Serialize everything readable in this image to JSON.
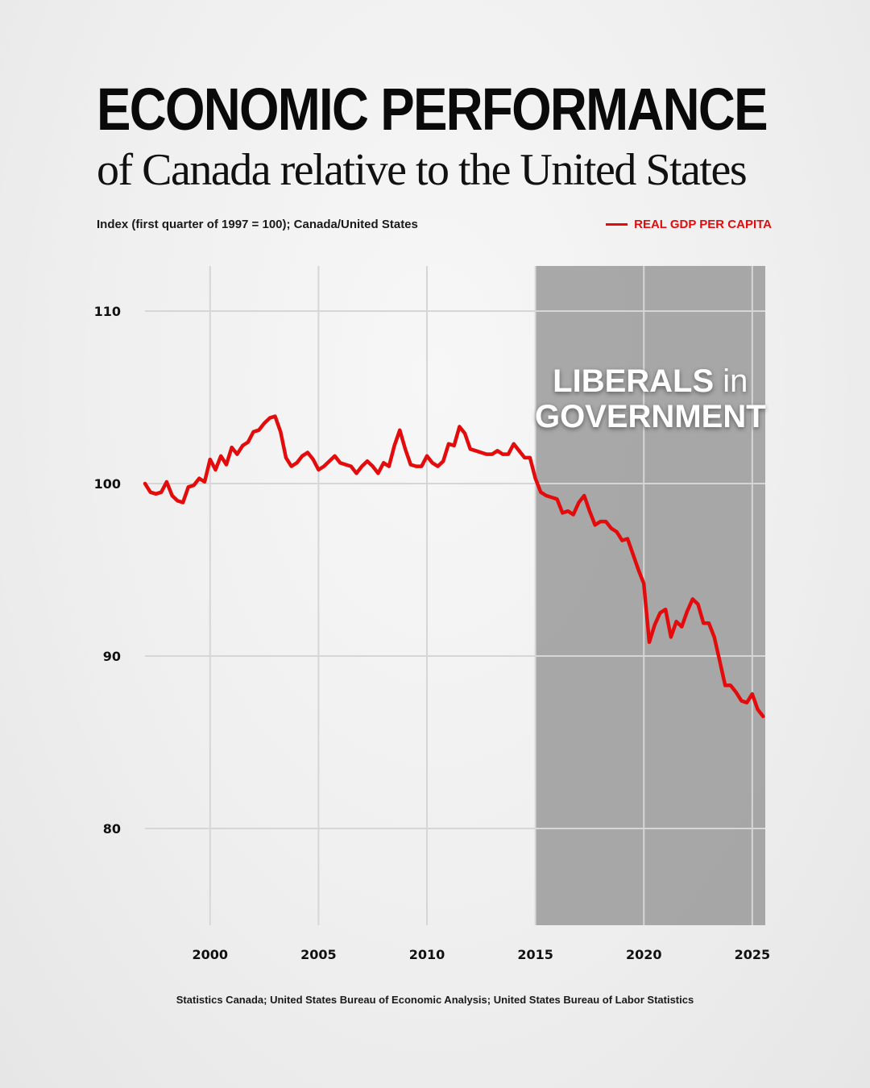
{
  "header": {
    "title": "ECONOMIC PERFORMANCE",
    "subtitle": "of Canada relative to the United States",
    "index_label": "Index (first quarter of 1997 = 100); Canada/United States",
    "legend_label": "REAL GDP PER CAPITA"
  },
  "footer": {
    "source": "Statistics Canada; United States Bureau of Economic Analysis; United States Bureau of Labor Statistics"
  },
  "colors": {
    "line": "#e30b0b",
    "shade": "#9a9a9a",
    "grid": "#d6d6d6",
    "text": "#111111"
  },
  "chart_data": {
    "type": "line",
    "title": "ECONOMIC PERFORMANCE",
    "subtitle": "of Canada relative to the United States",
    "xlim": [
      1997,
      2025.6
    ],
    "ylim": [
      75,
      113
    ],
    "x_ticks": [
      2000,
      2005,
      2010,
      2015,
      2020,
      2025
    ],
    "y_ticks": [
      80,
      90,
      100,
      110
    ],
    "grid": true,
    "legend_placement": "top-right",
    "annotation": {
      "line1_bold": "LIBERALS",
      "line1_rest": "in",
      "line2": "GOVERNMENT",
      "x_range": [
        2015,
        2025.6
      ]
    },
    "series": [
      {
        "name": "REAL GDP PER CAPITA",
        "points": [
          [
            1997.0,
            100.0
          ],
          [
            1997.25,
            99.5
          ],
          [
            1997.5,
            99.4
          ],
          [
            1997.75,
            99.5
          ],
          [
            1998.0,
            100.1
          ],
          [
            1998.25,
            99.3
          ],
          [
            1998.5,
            99.0
          ],
          [
            1998.75,
            98.9
          ],
          [
            1999.0,
            99.8
          ],
          [
            1999.25,
            99.9
          ],
          [
            1999.5,
            100.3
          ],
          [
            1999.75,
            100.1
          ],
          [
            2000.0,
            101.4
          ],
          [
            2000.25,
            100.8
          ],
          [
            2000.5,
            101.6
          ],
          [
            2000.75,
            101.1
          ],
          [
            2001.0,
            102.1
          ],
          [
            2001.25,
            101.7
          ],
          [
            2001.5,
            102.2
          ],
          [
            2001.75,
            102.4
          ],
          [
            2002.0,
            103.0
          ],
          [
            2002.25,
            103.1
          ],
          [
            2002.5,
            103.5
          ],
          [
            2002.75,
            103.8
          ],
          [
            2003.0,
            103.9
          ],
          [
            2003.25,
            103.0
          ],
          [
            2003.5,
            101.5
          ],
          [
            2003.75,
            101.0
          ],
          [
            2004.0,
            101.2
          ],
          [
            2004.25,
            101.6
          ],
          [
            2004.5,
            101.8
          ],
          [
            2004.75,
            101.4
          ],
          [
            2005.0,
            100.8
          ],
          [
            2005.25,
            101.0
          ],
          [
            2005.5,
            101.3
          ],
          [
            2005.75,
            101.6
          ],
          [
            2006.0,
            101.2
          ],
          [
            2006.25,
            101.1
          ],
          [
            2006.5,
            101.0
          ],
          [
            2006.75,
            100.6
          ],
          [
            2007.0,
            101.0
          ],
          [
            2007.25,
            101.3
          ],
          [
            2007.5,
            101.0
          ],
          [
            2007.75,
            100.6
          ],
          [
            2008.0,
            101.2
          ],
          [
            2008.25,
            101.0
          ],
          [
            2008.5,
            102.2
          ],
          [
            2008.75,
            103.1
          ],
          [
            2009.0,
            102.0
          ],
          [
            2009.25,
            101.1
          ],
          [
            2009.5,
            101.0
          ],
          [
            2009.75,
            101.0
          ],
          [
            2010.0,
            101.6
          ],
          [
            2010.25,
            101.2
          ],
          [
            2010.5,
            101.0
          ],
          [
            2010.75,
            101.3
          ],
          [
            2011.0,
            102.3
          ],
          [
            2011.25,
            102.2
          ],
          [
            2011.5,
            103.3
          ],
          [
            2011.75,
            102.9
          ],
          [
            2012.0,
            102.0
          ],
          [
            2012.25,
            101.9
          ],
          [
            2012.5,
            101.8
          ],
          [
            2012.75,
            101.7
          ],
          [
            2013.0,
            101.7
          ],
          [
            2013.25,
            101.9
          ],
          [
            2013.5,
            101.7
          ],
          [
            2013.75,
            101.7
          ],
          [
            2014.0,
            102.3
          ],
          [
            2014.25,
            101.9
          ],
          [
            2014.5,
            101.5
          ],
          [
            2014.75,
            101.5
          ],
          [
            2015.0,
            100.3
          ],
          [
            2015.25,
            99.5
          ],
          [
            2015.5,
            99.3
          ],
          [
            2015.75,
            99.2
          ],
          [
            2016.0,
            99.1
          ],
          [
            2016.25,
            98.3
          ],
          [
            2016.5,
            98.4
          ],
          [
            2016.75,
            98.2
          ],
          [
            2017.0,
            98.9
          ],
          [
            2017.25,
            99.3
          ],
          [
            2017.5,
            98.4
          ],
          [
            2017.75,
            97.6
          ],
          [
            2018.0,
            97.8
          ],
          [
            2018.25,
            97.8
          ],
          [
            2018.5,
            97.4
          ],
          [
            2018.75,
            97.2
          ],
          [
            2019.0,
            96.7
          ],
          [
            2019.25,
            96.8
          ],
          [
            2019.5,
            95.9
          ],
          [
            2019.75,
            95.0
          ],
          [
            2020.0,
            94.2
          ],
          [
            2020.25,
            90.8
          ],
          [
            2020.5,
            91.8
          ],
          [
            2020.75,
            92.5
          ],
          [
            2021.0,
            92.7
          ],
          [
            2021.25,
            91.1
          ],
          [
            2021.5,
            92.0
          ],
          [
            2021.75,
            91.7
          ],
          [
            2022.0,
            92.6
          ],
          [
            2022.25,
            93.3
          ],
          [
            2022.5,
            93.0
          ],
          [
            2022.75,
            91.9
          ],
          [
            2023.0,
            91.9
          ],
          [
            2023.25,
            91.1
          ],
          [
            2023.5,
            89.7
          ],
          [
            2023.75,
            88.3
          ],
          [
            2024.0,
            88.3
          ],
          [
            2024.25,
            87.9
          ],
          [
            2024.5,
            87.4
          ],
          [
            2024.75,
            87.3
          ],
          [
            2025.0,
            87.8
          ],
          [
            2025.25,
            86.9
          ],
          [
            2025.5,
            86.5
          ]
        ]
      }
    ]
  }
}
